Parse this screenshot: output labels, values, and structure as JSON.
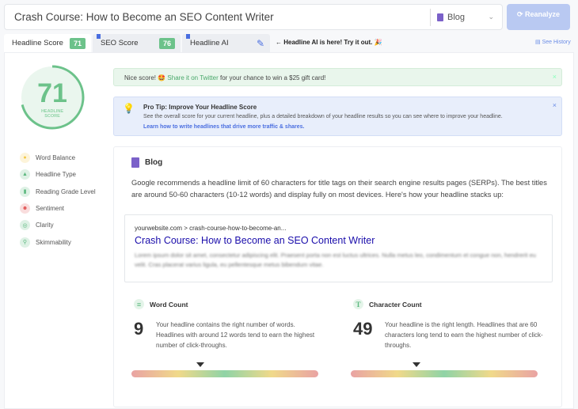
{
  "header": {
    "headline": "Crash Course: How to Become an SEO Content Writer",
    "content_type": "Blog",
    "reanalyze_label": "Reanalyze"
  },
  "tabs": [
    {
      "label": "Headline Score",
      "score": "71"
    },
    {
      "label": "SEO Score",
      "score": "76"
    },
    {
      "label": "Headline AI"
    }
  ],
  "promo": "← Headline AI is here! Try it out. 🎉",
  "see_history": "See History",
  "score": {
    "value": "71",
    "label": "HEADLINE SCORE",
    "percent": 71,
    "color": "#6cc28a"
  },
  "sidebar": {
    "items": [
      {
        "label": "Word Balance",
        "icon": "coins-icon",
        "color": "#f3c947"
      },
      {
        "label": "Headline Type",
        "icon": "shapes-icon",
        "color": "#5bb87e"
      },
      {
        "label": "Reading Grade Level",
        "icon": "book-icon",
        "color": "#5bb87e"
      },
      {
        "label": "Sentiment",
        "icon": "face-icon",
        "color": "#e25555"
      },
      {
        "label": "Clarity",
        "icon": "target-icon",
        "color": "#5bb87e"
      },
      {
        "label": "Skimmability",
        "icon": "search-icon",
        "color": "#5bb87e"
      }
    ]
  },
  "alert": {
    "prefix": "Nice score! 🤩 ",
    "link": "Share it on Twitter",
    "suffix": " for your chance to win a $25 gift card!"
  },
  "tip": {
    "title": "Pro Tip: Improve Your Headline Score",
    "body": "See the overall score for your current headline, plus a detailed breakdown of your headline results so you can see where to improve your headline.",
    "link": "Learn how to write headlines that drive more traffic & shares."
  },
  "card": {
    "title": "Blog",
    "description": "Google recommends a headline limit of 60 characters for title tags on their search engine results pages (SERPs). The best titles are around 50-60 characters (10-12 words) and display fully on most devices. Here's how your headline stacks up:",
    "serp": {
      "url": "yourwebsite.com > crash-course-how-to-become-an...",
      "title": "Crash Course: How to Become an SEO Content Writer",
      "description": "Lorem ipsum dolor sit amet, consectetur adipiscing elit. Praesent porta non est luctus ultrices. Nulla metus leo, condimentum et congue non, hendrerit eu velit. Cras placerat varius ligula, eu pellentesque metus bibendum vitae."
    }
  },
  "metrics": [
    {
      "title": "Word Count",
      "value": "9",
      "text": "Your headline contains the right number of words. Headlines with around 12 words tend to earn the highest number of click-throughs.",
      "marker_percent": 37
    },
    {
      "title": "Character Count",
      "value": "49",
      "text": "Your headline is the right length. Headlines that are 60 characters long tend to earn the highest number of click-throughs.",
      "marker_percent": 35
    }
  ]
}
